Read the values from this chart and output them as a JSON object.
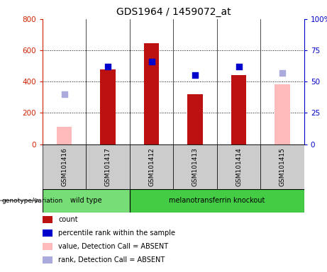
{
  "title": "GDS1964 / 1459072_at",
  "samples": [
    "GSM101416",
    "GSM101417",
    "GSM101412",
    "GSM101413",
    "GSM101414",
    "GSM101415"
  ],
  "bar_values": [
    null,
    480,
    645,
    320,
    440,
    null
  ],
  "bar_absent_values": [
    110,
    null,
    null,
    null,
    null,
    385
  ],
  "percentile_rank": [
    null,
    62,
    66,
    55,
    62,
    null
  ],
  "percentile_rank_absent": [
    40,
    null,
    null,
    null,
    null,
    57
  ],
  "genotype_groups": [
    {
      "label": "wild type",
      "indices": [
        0,
        1
      ],
      "color": "#77dd77"
    },
    {
      "label": "melanotransferrin knockout",
      "indices": [
        2,
        3,
        4,
        5
      ],
      "color": "#44cc44"
    }
  ],
  "bar_color_present": "#bb1111",
  "bar_color_absent": "#ffbbbb",
  "dot_color_present": "#0000cc",
  "dot_color_absent": "#aaaadd",
  "ylim_left": [
    0,
    800
  ],
  "yticks_left": [
    0,
    200,
    400,
    600,
    800
  ],
  "ytick_labels_right": [
    "0",
    "25",
    "50",
    "75",
    "100%"
  ],
  "sample_box_color": "#cccccc",
  "left_axis_color": "#cc2200",
  "right_axis_color": "#0000cc",
  "legend_items": [
    {
      "label": "count",
      "color": "#bb1111"
    },
    {
      "label": "percentile rank within the sample",
      "color": "#0000cc"
    },
    {
      "label": "value, Detection Call = ABSENT",
      "color": "#ffbbbb"
    },
    {
      "label": "rank, Detection Call = ABSENT",
      "color": "#aaaadd"
    }
  ],
  "genotype_label": "genotype/variation",
  "bar_width": 0.35,
  "dot_size": 40,
  "title_fontsize": 10
}
